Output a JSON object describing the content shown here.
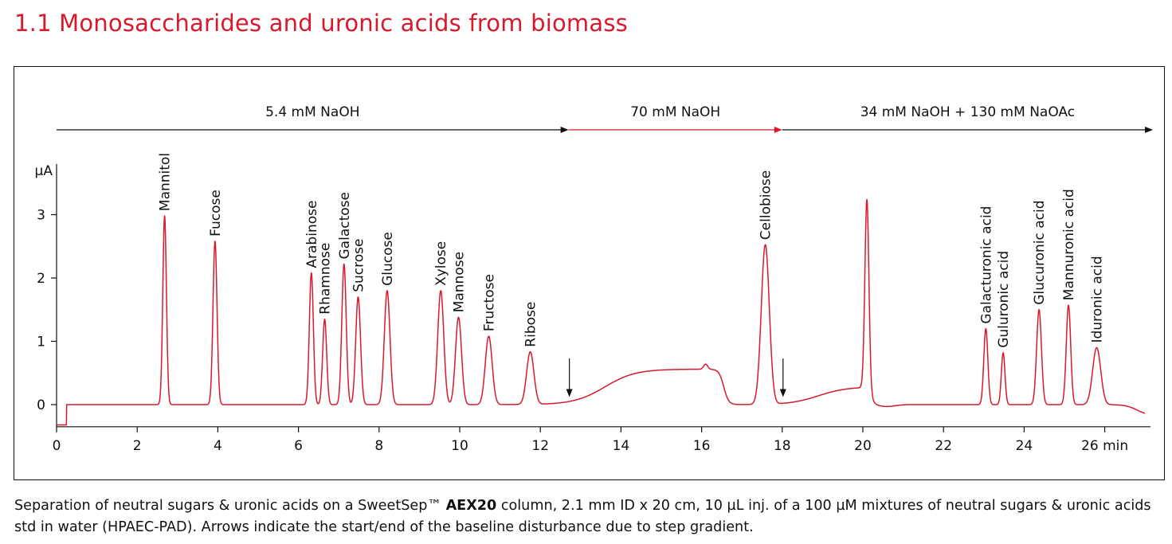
{
  "page": {
    "title": "1.1  Monosaccharides and uronic acids from biomass"
  },
  "caption": {
    "part1": "Separation of neutral sugars & uronic acids on a SweetSep™ ",
    "bold": "AEX20",
    "part2": " column, 2.1 mm ID x 20 cm, 10 µL inj. of a 100 µM mixtures of neutral sugars & uronic acids std in water (HPAEC-PAD). Arrows indicate the start/end of the baseline disturbance due to step gradient."
  },
  "colors": {
    "trace": "#d7192d",
    "title": "#d7192d",
    "axis": "#111111"
  },
  "chart_data": {
    "type": "line",
    "title": "",
    "xlabel": "",
    "ylabel": "µA",
    "x_unit": "min",
    "xlim": [
      0,
      27
    ],
    "ylim": [
      -0.35,
      3.8
    ],
    "x_ticks": [
      0,
      2,
      4,
      6,
      8,
      10,
      12,
      14,
      16,
      18,
      20,
      22,
      24,
      26
    ],
    "y_ticks": [
      0,
      1,
      2,
      3
    ],
    "grid": false,
    "gradient": [
      {
        "label": "5.4 mM NaOH",
        "start": 0,
        "end": 12.7,
        "color": "#111111"
      },
      {
        "label": "70 mM NaOH",
        "start": 12.7,
        "end": 18.0,
        "color": "#d7192d"
      },
      {
        "label": "34 mM NaOH + 130 mM NaOAc",
        "start": 18.0,
        "end": 27.2,
        "color": "#111111"
      }
    ],
    "peaks": [
      {
        "name": "Mannitol",
        "rt": 2.68,
        "height": 2.98,
        "width": 0.045
      },
      {
        "name": "Fucose",
        "rt": 3.93,
        "height": 2.58,
        "width": 0.05
      },
      {
        "name": "Arabinose",
        "rt": 6.32,
        "height": 2.08,
        "width": 0.05
      },
      {
        "name": "Rhamnose",
        "rt": 6.65,
        "height": 1.35,
        "width": 0.05
      },
      {
        "name": "Galactose",
        "rt": 7.13,
        "height": 2.22,
        "width": 0.055
      },
      {
        "name": "Sucrose",
        "rt": 7.48,
        "height": 1.7,
        "width": 0.06
      },
      {
        "name": "Glucose",
        "rt": 8.2,
        "height": 1.8,
        "width": 0.07
      },
      {
        "name": "Xylose",
        "rt": 9.53,
        "height": 1.8,
        "width": 0.075
      },
      {
        "name": "Mannose",
        "rt": 9.97,
        "height": 1.38,
        "width": 0.075
      },
      {
        "name": "Fructose",
        "rt": 10.72,
        "height": 1.08,
        "width": 0.085
      },
      {
        "name": "Ribose",
        "rt": 11.75,
        "height": 0.83,
        "width": 0.09
      },
      {
        "name": "Cellobiose",
        "rt": 17.58,
        "height": 2.52,
        "width": 0.1
      },
      {
        "name": "Galacturonic acid",
        "rt": 23.05,
        "height": 1.2,
        "width": 0.05
      },
      {
        "name": "Guluronic acid",
        "rt": 23.48,
        "height": 0.82,
        "width": 0.045
      },
      {
        "name": "Glucuronic acid",
        "rt": 24.37,
        "height": 1.5,
        "width": 0.06
      },
      {
        "name": "Mannuronic acid",
        "rt": 25.1,
        "height": 1.57,
        "width": 0.055
      },
      {
        "name": "Iduronic acid",
        "rt": 25.8,
        "height": 0.9,
        "width": 0.1
      }
    ],
    "unlabeled_peaks": [
      {
        "rt": 20.1,
        "height": 3.0,
        "width": 0.05
      }
    ],
    "arrows": [
      {
        "x": 12.72,
        "note": "start of baseline disturbance"
      },
      {
        "x": 18.02,
        "note": "end of baseline disturbance"
      }
    ]
  }
}
